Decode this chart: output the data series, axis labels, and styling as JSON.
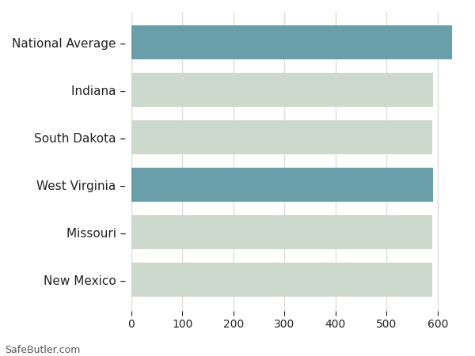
{
  "categories": [
    "New Mexico",
    "Missouri",
    "West Virginia",
    "South Dakota",
    "Indiana",
    "National Average"
  ],
  "values": [
    590,
    590,
    591,
    590,
    591,
    628
  ],
  "bar_colors": [
    "#cdd9cd",
    "#cdd9cd",
    "#6a9faa",
    "#cdd9cd",
    "#cdd9cd",
    "#6a9faa"
  ],
  "background_color": "#ffffff",
  "xlim": [
    0,
    650
  ],
  "xticks": [
    0,
    100,
    200,
    300,
    400,
    500,
    600
  ],
  "grid_color": "#dddddd",
  "text_color": "#222222",
  "bar_height": 0.72,
  "footer_text": "SafeButler.com",
  "tick_label_fontsize": 10,
  "ylabel_fontsize": 11
}
